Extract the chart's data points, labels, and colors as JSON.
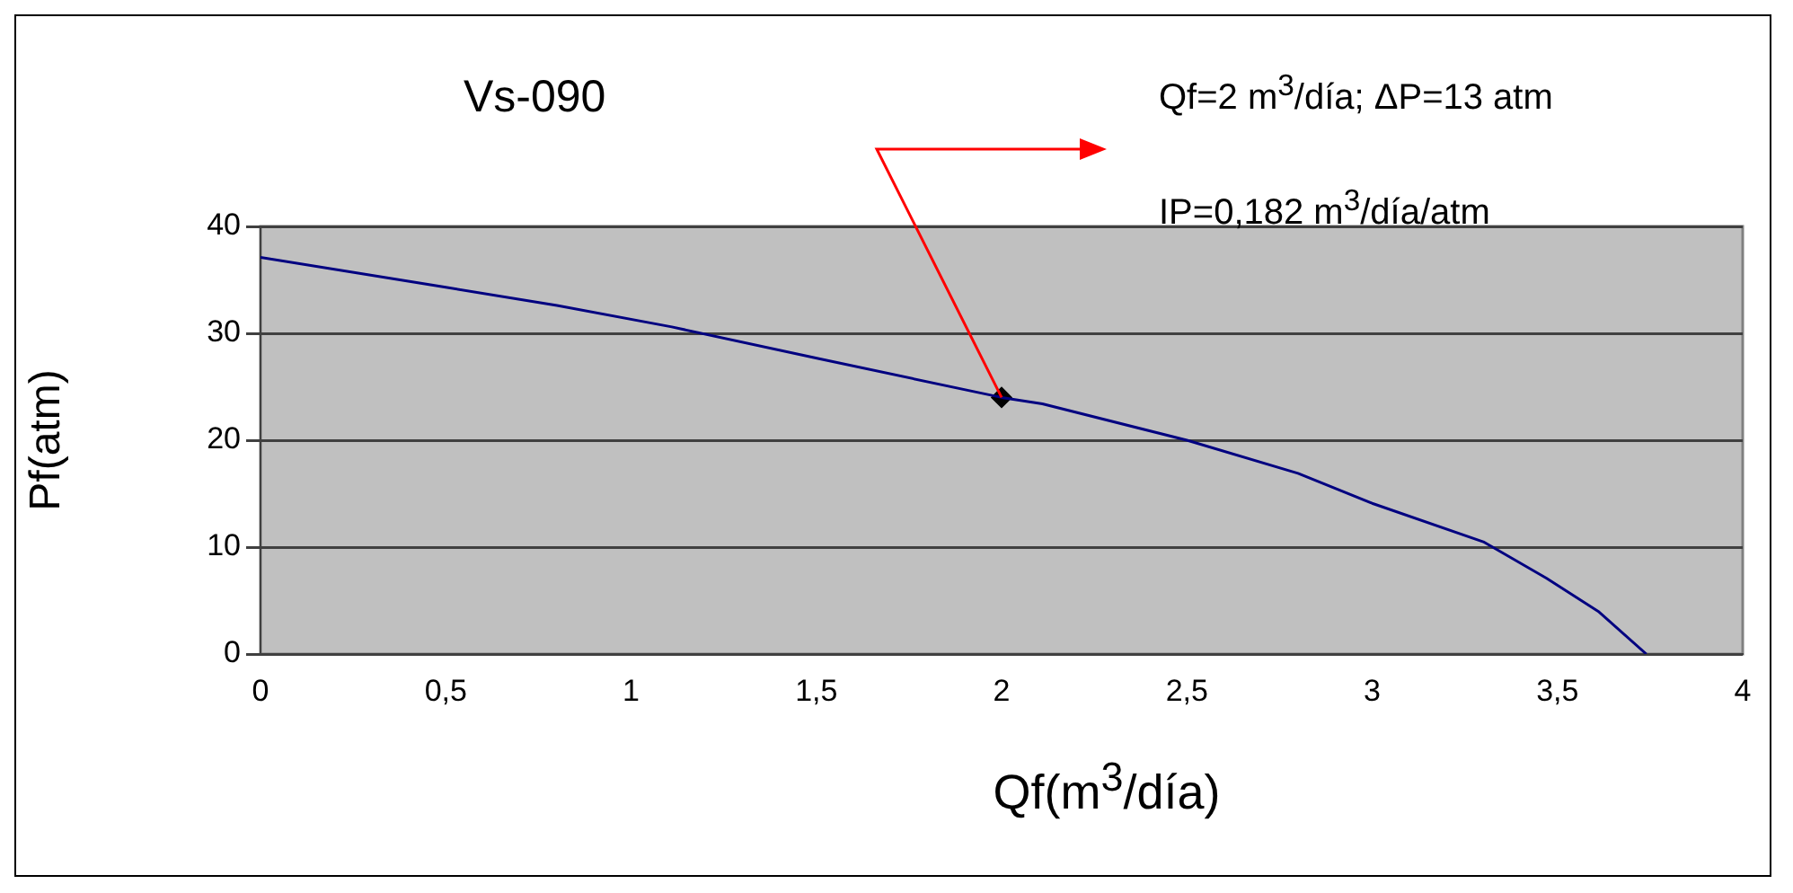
{
  "chart_data": {
    "type": "line",
    "title": "Vs-090",
    "xlabel": "Qf(m$^{3}$/día)",
    "ylabel": "Pf(atm)",
    "annotations": [
      "Qf=2 m$^{3}$/día; ΔP=13 atm",
      "IP=0,182 m$^{3}$/día/atm"
    ],
    "series": [
      {
        "type": "line",
        "color": "#000080",
        "marker": "none",
        "x": [
          0,
          0.5,
          0.8,
          1.11,
          1.51,
          2,
          2.11,
          2.5,
          2.8,
          3,
          3.3,
          3.47,
          3.61,
          3.74
        ],
        "values": [
          37.1,
          34.3,
          32.6,
          30.6,
          27.6,
          24,
          23.4,
          20,
          16.9,
          14.1,
          10.5,
          7.1,
          4,
          0
        ]
      },
      {
        "type": "scatter",
        "color": "#000000",
        "marker": "diamond",
        "x": [
          2
        ],
        "values": [
          24
        ]
      }
    ],
    "xlim": [
      0,
      4
    ],
    "xticks": [
      0,
      {
        "value": 0.5,
        "label": "0,5"
      },
      1,
      {
        "value": 1.5,
        "label": "1,5"
      },
      2,
      {
        "value": 2.5,
        "label": "2,5"
      },
      3,
      {
        "value": 3.5,
        "label": "3,5"
      },
      4
    ],
    "ylim": [
      0,
      40
    ],
    "yticks": [
      0,
      10,
      20,
      30,
      40
    ],
    "grid": "y",
    "legend": false
  }
}
